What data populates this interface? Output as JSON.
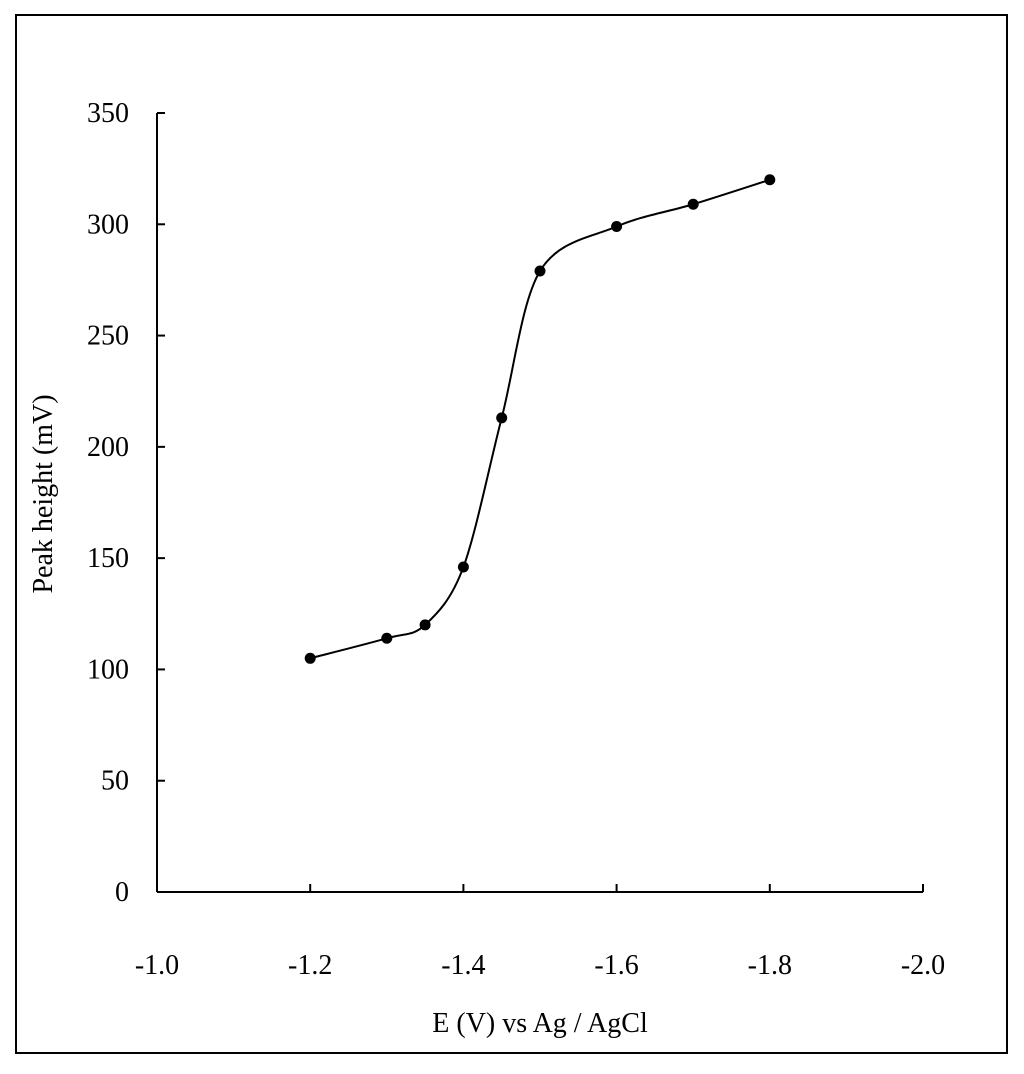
{
  "chart_data": {
    "type": "line",
    "title": "",
    "xlabel": "E (V) vs Ag / AgCl",
    "ylabel": "Peak height (mV)",
    "xlim": [
      -1.0,
      -2.0
    ],
    "ylim": [
      0,
      350
    ],
    "x_reversed": true,
    "grid": false,
    "legend": "none",
    "x_ticks": [
      {
        "value": -1.0,
        "label": "-1.0"
      },
      {
        "value": -1.2,
        "label": "-1.2"
      },
      {
        "value": -1.4,
        "label": "-1.4"
      },
      {
        "value": -1.6,
        "label": "-1.6"
      },
      {
        "value": -1.8,
        "label": "-1.8"
      },
      {
        "value": -2.0,
        "label": "-2.0"
      }
    ],
    "y_ticks": [
      {
        "value": 0,
        "label": "0"
      },
      {
        "value": 50,
        "label": "50"
      },
      {
        "value": 100,
        "label": "100"
      },
      {
        "value": 150,
        "label": "150"
      },
      {
        "value": 200,
        "label": "200"
      },
      {
        "value": 250,
        "label": "250"
      },
      {
        "value": 300,
        "label": "300"
      },
      {
        "value": 350,
        "label": "350"
      }
    ],
    "series": [
      {
        "color": "#000000",
        "marker": "circle",
        "smooth": true,
        "points": [
          {
            "x": -1.2,
            "y": 105
          },
          {
            "x": -1.3,
            "y": 114
          },
          {
            "x": -1.35,
            "y": 120
          },
          {
            "x": -1.4,
            "y": 146
          },
          {
            "x": -1.45,
            "y": 213
          },
          {
            "x": -1.5,
            "y": 279
          },
          {
            "x": -1.6,
            "y": 299
          },
          {
            "x": -1.7,
            "y": 309
          },
          {
            "x": -1.8,
            "y": 320
          }
        ]
      }
    ]
  }
}
